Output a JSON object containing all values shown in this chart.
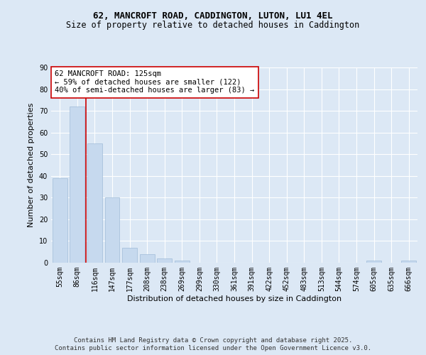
{
  "title1": "62, MANCROFT ROAD, CADDINGTON, LUTON, LU1 4EL",
  "title2": "Size of property relative to detached houses in Caddington",
  "xlabel": "Distribution of detached houses by size in Caddington",
  "ylabel": "Number of detached properties",
  "categories": [
    "55sqm",
    "86sqm",
    "116sqm",
    "147sqm",
    "177sqm",
    "208sqm",
    "238sqm",
    "269sqm",
    "299sqm",
    "330sqm",
    "361sqm",
    "391sqm",
    "422sqm",
    "452sqm",
    "483sqm",
    "513sqm",
    "544sqm",
    "574sqm",
    "605sqm",
    "635sqm",
    "666sqm"
  ],
  "values": [
    39,
    72,
    55,
    30,
    7,
    4,
    2,
    1,
    0,
    0,
    0,
    0,
    0,
    0,
    0,
    0,
    0,
    0,
    1,
    0,
    1
  ],
  "bar_color": "#c6d9ee",
  "bar_edge_color": "#a0bcd8",
  "vline_x": 1.5,
  "vline_color": "#cc0000",
  "annotation_text": "62 MANCROFT ROAD: 125sqm\n← 59% of detached houses are smaller (122)\n40% of semi-detached houses are larger (83) →",
  "annotation_box_color": "#ffffff",
  "annotation_box_edge_color": "#cc0000",
  "ylim": [
    0,
    90
  ],
  "yticks": [
    0,
    10,
    20,
    30,
    40,
    50,
    60,
    70,
    80,
    90
  ],
  "footer_text": "Contains HM Land Registry data © Crown copyright and database right 2025.\nContains public sector information licensed under the Open Government Licence v3.0.",
  "background_color": "#dce8f5",
  "plot_background_color": "#dce8f5",
  "grid_color": "#ffffff",
  "title_fontsize": 9,
  "subtitle_fontsize": 8.5,
  "axis_label_fontsize": 8,
  "tick_fontsize": 7,
  "annotation_fontsize": 7.5,
  "footer_fontsize": 6.5
}
